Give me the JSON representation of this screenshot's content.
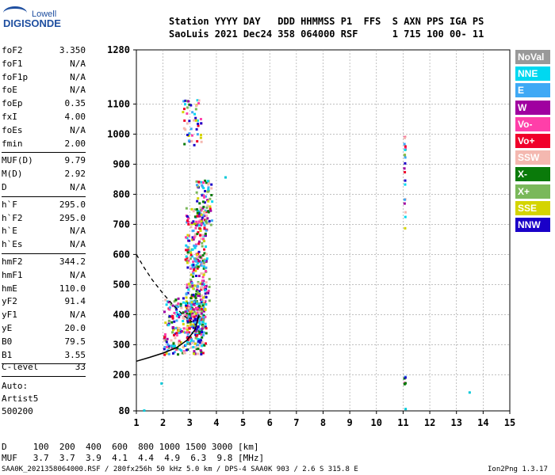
{
  "logo": {
    "top": "Lowell",
    "main": "DIGISONDE"
  },
  "header": {
    "line1": "Station YYYY DAY   DDD HHMMSS P1  FFS  S AXN PPS IGA PS",
    "line2": "SaoLuis 2021 Dec24 358 064000 RSF      1 715 100 00- 11"
  },
  "params_group1": [
    {
      "k": "foF2",
      "v": "3.350"
    },
    {
      "k": "foF1",
      "v": "N/A"
    },
    {
      "k": "foF1p",
      "v": "N/A"
    },
    {
      "k": "foE",
      "v": "N/A"
    },
    {
      "k": "foEp",
      "v": "0.35"
    },
    {
      "k": "fxI",
      "v": "4.00"
    },
    {
      "k": "foEs",
      "v": "N/A"
    },
    {
      "k": "fmin",
      "v": "2.00"
    }
  ],
  "params_group2": [
    {
      "k": "MUF(D)",
      "v": "9.79"
    },
    {
      "k": "M(D)",
      "v": "2.92"
    },
    {
      "k": "D",
      "v": "N/A"
    }
  ],
  "params_group3": [
    {
      "k": "h`F",
      "v": "295.0"
    },
    {
      "k": "h`F2",
      "v": "295.0"
    },
    {
      "k": "h`E",
      "v": "N/A"
    },
    {
      "k": "h`Es",
      "v": "N/A"
    }
  ],
  "params_group4": [
    {
      "k": "hmF2",
      "v": "344.2"
    },
    {
      "k": "hmF1",
      "v": "N/A"
    },
    {
      "k": "hmE",
      "v": "110.0"
    },
    {
      "k": "yF2",
      "v": "91.4"
    },
    {
      "k": "yF1",
      "v": "N/A"
    },
    {
      "k": "yE",
      "v": "20.0"
    },
    {
      "k": "B0",
      "v": "79.5"
    },
    {
      "k": "B1",
      "v": "3.55"
    }
  ],
  "clevel": {
    "k": "C-level",
    "v": "33"
  },
  "auto": [
    "Auto:",
    "Artist5",
    "500200"
  ],
  "bottom_table": {
    "row1": "D     100  200  400  600  800 1000 1500 3000 [km]",
    "row2": "MUF   3.7  3.7  3.9  4.1  4.4  4.9  6.3  9.8 [MHz]"
  },
  "footer": {
    "left": "SAA0K_2021358064000.RSF / 280fx256h 50 kHz 5.0 km / DPS-4 SAA0K 903 / 2.6 S 315.8 E",
    "right": "Ion2Png 1.3.17"
  },
  "legend": [
    {
      "label": "NoVal",
      "bg": "#999999",
      "fg": "#ffffff"
    },
    {
      "label": "NNE",
      "bg": "#00d8f0",
      "fg": "#ffffff"
    },
    {
      "label": "E",
      "bg": "#3fa9f5",
      "fg": "#ffffff"
    },
    {
      "label": "W",
      "bg": "#a000a0",
      "fg": "#ffffff"
    },
    {
      "label": "Vo-",
      "bg": "#ff3fa9",
      "fg": "#ffffff"
    },
    {
      "label": "Vo+",
      "bg": "#f0002a",
      "fg": "#ffffff"
    },
    {
      "label": "SSW",
      "bg": "#f4b8b0",
      "fg": "#ffffff"
    },
    {
      "label": "X-",
      "bg": "#0a7a0a",
      "fg": "#ffffff"
    },
    {
      "label": "X+",
      "bg": "#7ab85a",
      "fg": "#ffffff"
    },
    {
      "label": "SSE",
      "bg": "#d4d400",
      "fg": "#ffffff"
    },
    {
      "label": "NNW",
      "bg": "#1a00c8",
      "fg": "#ffffff"
    }
  ],
  "chart_data": {
    "type": "scatter",
    "xlabel": "",
    "ylabel": "",
    "xlim": [
      1,
      15
    ],
    "ylim": [
      80,
      1280
    ],
    "x_ticks": [
      "1",
      "2",
      "3",
      "4",
      "5",
      "6",
      "7",
      "8",
      "9",
      "10",
      "11",
      "12",
      "13",
      "14",
      "15"
    ],
    "y_ticks": [
      {
        "v": 80,
        "label": "80"
      },
      {
        "v": 200,
        "label": "200"
      },
      {
        "v": 300,
        "label": "300"
      },
      {
        "v": 400,
        "label": "400"
      },
      {
        "v": 500,
        "label": "500"
      },
      {
        "v": 600,
        "label": "600"
      },
      {
        "v": 700,
        "label": "700"
      },
      {
        "v": 800,
        "label": "800"
      },
      {
        "v": 900,
        "label": "900"
      },
      {
        "v": 1000,
        "label": "1000"
      },
      {
        "v": 1100,
        "label": "1100"
      },
      {
        "v": 1280,
        "label": "1280"
      }
    ],
    "grid": true,
    "echo_clusters": [
      {
        "name": "F-trace",
        "x": [
          2.0,
          3.5
        ],
        "y": [
          270,
          460
        ],
        "n": 260
      },
      {
        "name": "F-trace-core",
        "x": [
          2.8,
          3.6
        ],
        "y": [
          300,
          520
        ],
        "n": 180
      },
      {
        "name": "F-upper",
        "x": [
          3.0,
          3.7
        ],
        "y": [
          420,
          600
        ],
        "n": 90
      },
      {
        "name": "2F-trace",
        "x": [
          2.8,
          3.6
        ],
        "y": [
          560,
          760
        ],
        "n": 150
      },
      {
        "name": "2F-upper",
        "x": [
          3.2,
          3.8
        ],
        "y": [
          700,
          850
        ],
        "n": 80
      },
      {
        "name": "3F-trace",
        "x": [
          2.7,
          3.4
        ],
        "y": [
          960,
          1120
        ],
        "n": 50
      },
      {
        "name": "vert-11",
        "x": [
          11.0,
          11.05
        ],
        "y": [
          690,
          1000
        ],
        "n": 22
      },
      {
        "name": "vert-11-low",
        "x": [
          11.0,
          11.05
        ],
        "y": [
          170,
          200
        ],
        "n": 6
      }
    ],
    "isolated_points": [
      {
        "x": 1.25,
        "y": 85
      },
      {
        "x": 11.05,
        "y": 90
      },
      {
        "x": 13.45,
        "y": 145
      },
      {
        "x": 1.9,
        "y": 175
      },
      {
        "x": 4.3,
        "y": 860
      }
    ],
    "profile_curve": {
      "x": [
        1.0,
        1.5,
        2.0,
        2.5,
        2.9,
        3.2,
        3.35
      ],
      "y": [
        245,
        258,
        272,
        290,
        315,
        350,
        400
      ]
    },
    "dashed_curve": {
      "x": [
        1.0,
        1.3,
        1.6,
        2.0,
        2.4,
        2.8,
        3.1
      ],
      "y": [
        600,
        555,
        515,
        470,
        430,
        395,
        375
      ]
    }
  }
}
